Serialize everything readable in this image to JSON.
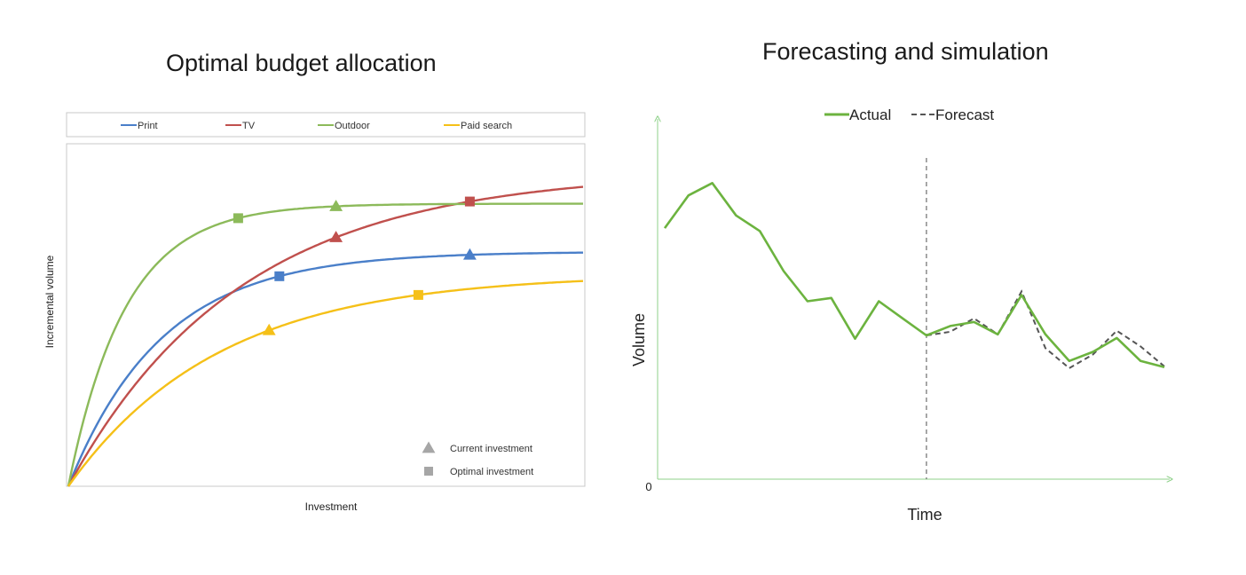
{
  "chart_data": [
    {
      "type": "line",
      "title": "Optimal budget allocation",
      "xlabel": "Investment",
      "ylabel": "Incremental volume",
      "legend_position": "top",
      "grid": false,
      "series": [
        {
          "name": "Print",
          "color": "#4a7fc9",
          "asymptote": 0.685,
          "rate": 5.5,
          "current_x": 0.78,
          "optimal_x": 0.41
        },
        {
          "name": "TV",
          "color": "#c0504d",
          "asymptote": 0.92,
          "rate": 3.0,
          "current_x": 0.52,
          "optimal_x": 0.78
        },
        {
          "name": "Outdoor",
          "color": "#8cba5a",
          "asymptote": 0.825,
          "rate": 9.0,
          "current_x": 0.52,
          "optimal_x": 0.33
        },
        {
          "name": "Paid search",
          "color": "#f5c018",
          "asymptote": 0.62,
          "rate": 3.4,
          "current_x": 0.39,
          "optimal_x": 0.68
        }
      ],
      "marker_legend": [
        {
          "label": "Current investment",
          "shape": "triangle",
          "color": "#a6a6a6"
        },
        {
          "label": "Optimal investment",
          "shape": "square",
          "color": "#a6a6a6"
        }
      ]
    },
    {
      "type": "line",
      "title": "Forecasting and simulation",
      "xlabel": "Time",
      "ylabel": "Volume",
      "y_tick_labels": [
        "0"
      ],
      "legend_position": "top",
      "grid": false,
      "split_index": 11,
      "series": [
        {
          "name": "Actual",
          "color": "#6cb33f",
          "style": "solid",
          "values": [
            0.69,
            0.78,
            0.814,
            0.725,
            0.682,
            0.572,
            0.489,
            0.498,
            0.386,
            0.489,
            0.442,
            0.395,
            0.421,
            0.432,
            0.398,
            0.506,
            0.398,
            0.325,
            0.35,
            0.388,
            0.325,
            0.308
          ]
        },
        {
          "name": "Forecast",
          "color": "#555555",
          "style": "dashed",
          "start_index": 11,
          "values": [
            0.395,
            0.405,
            0.442,
            0.398,
            0.516,
            0.36,
            0.305,
            0.343,
            0.408,
            0.365,
            0.31
          ]
        }
      ]
    }
  ]
}
